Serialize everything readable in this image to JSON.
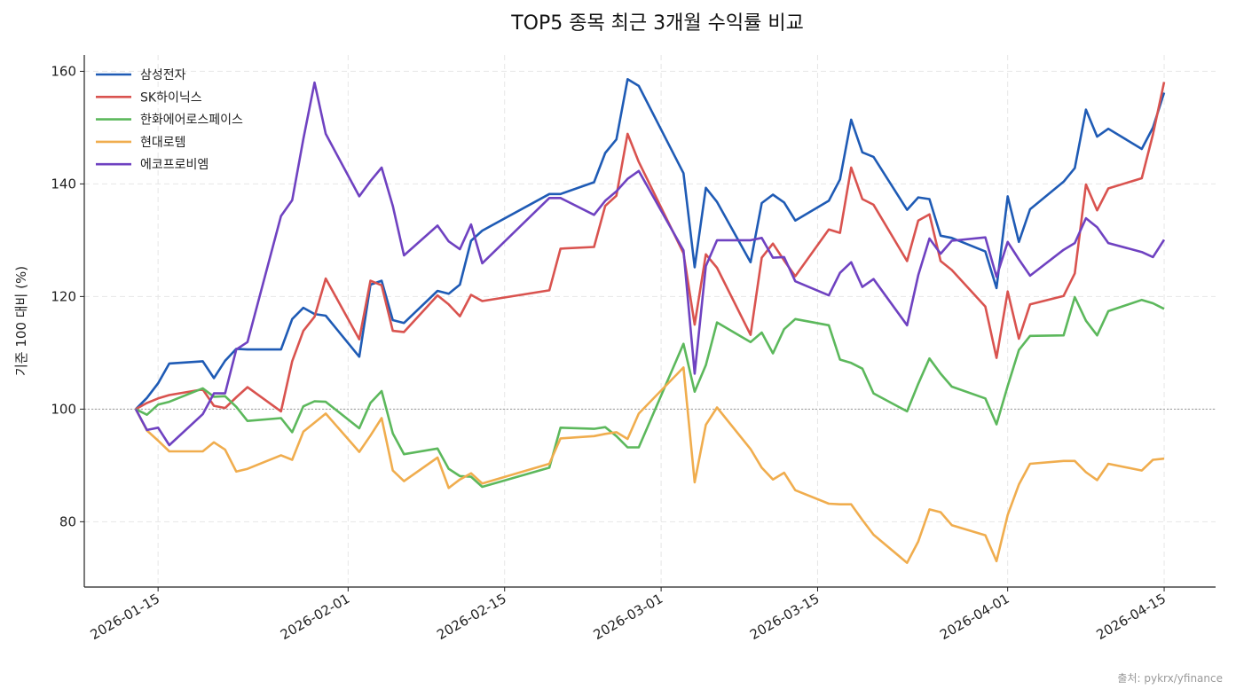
{
  "chart_data": {
    "type": "line",
    "title": "TOP5 종목 최근 3개월 수익률 비교",
    "xlabel": "",
    "ylabel": "기준 100 대비 (%)",
    "source": "출처: pykrx/yfinance",
    "ylim": [
      68.4,
      162.9
    ],
    "yticks": [
      80,
      100,
      120,
      140,
      160
    ],
    "xticks": [
      "2026-01-15",
      "2026-02-01",
      "2026-02-15",
      "2026-03-01",
      "2026-03-15",
      "2026-04-01",
      "2026-04-15"
    ],
    "grid": true,
    "reference_line": 100,
    "legend_position": "top-left",
    "x": [
      "2026-01-13",
      "2026-01-14",
      "2026-01-15",
      "2026-01-16",
      "2026-01-19",
      "2026-01-20",
      "2026-01-21",
      "2026-01-22",
      "2026-01-23",
      "2026-01-26",
      "2026-01-27",
      "2026-01-28",
      "2026-01-29",
      "2026-01-30",
      "2026-02-02",
      "2026-02-03",
      "2026-02-04",
      "2026-02-05",
      "2026-02-06",
      "2026-02-09",
      "2026-02-10",
      "2026-02-11",
      "2026-02-12",
      "2026-02-13",
      "2026-02-19",
      "2026-02-20",
      "2026-02-23",
      "2026-02-24",
      "2026-02-25",
      "2026-02-26",
      "2026-02-27",
      "2026-03-03",
      "2026-03-04",
      "2026-03-05",
      "2026-03-06",
      "2026-03-09",
      "2026-03-10",
      "2026-03-11",
      "2026-03-12",
      "2026-03-13",
      "2026-03-16",
      "2026-03-17",
      "2026-03-18",
      "2026-03-19",
      "2026-03-20",
      "2026-03-23",
      "2026-03-24",
      "2026-03-25",
      "2026-03-26",
      "2026-03-27",
      "2026-03-30",
      "2026-03-31",
      "2026-04-01",
      "2026-04-02",
      "2026-04-03",
      "2026-04-06",
      "2026-04-07",
      "2026-04-08",
      "2026-04-09",
      "2026-04-10",
      "2026-04-13",
      "2026-04-14",
      "2026-04-15"
    ],
    "series": [
      {
        "name": "삼성전자",
        "color": "#1f5bb5",
        "values": [
          100,
          102.0,
          104.6,
          108.1,
          108.5,
          105.5,
          108.6,
          110.7,
          110.6,
          110.6,
          116.0,
          118.0,
          116.9,
          116.6,
          109.3,
          122.1,
          122.8,
          115.8,
          115.3,
          121.0,
          120.5,
          122.1,
          129.9,
          131.7,
          138.2,
          138.2,
          140.3,
          145.5,
          147.9,
          158.6,
          157.4,
          141.9,
          125.2,
          139.3,
          136.8,
          126.1,
          136.6,
          138.1,
          136.7,
          133.5,
          137.0,
          140.8,
          151.4,
          145.6,
          144.8,
          135.4,
          137.6,
          137.3,
          130.8,
          130.4,
          128.0,
          121.5,
          137.8,
          129.7,
          135.5,
          140.4,
          142.8,
          153.2,
          148.4,
          149.8,
          146.2,
          150.0,
          156.2
        ]
      },
      {
        "name": "SK하이닉스",
        "color": "#d9534f",
        "values": [
          100,
          101.1,
          101.9,
          102.5,
          103.5,
          100.6,
          100.2,
          102.1,
          103.9,
          99.6,
          108.5,
          113.9,
          116.4,
          123.2,
          112.4,
          122.8,
          122.0,
          113.9,
          113.7,
          120.2,
          118.6,
          116.5,
          120.3,
          119.2,
          121.1,
          128.5,
          128.8,
          136.1,
          137.9,
          148.9,
          143.9,
          127.7,
          115.0,
          127.5,
          125.1,
          113.2,
          126.9,
          129.4,
          126.4,
          123.6,
          131.9,
          131.3,
          142.9,
          137.3,
          136.3,
          126.3,
          133.5,
          134.6,
          126.3,
          124.7,
          118.2,
          109.1,
          120.9,
          112.5,
          118.6,
          120.1,
          124.1,
          139.9,
          135.3,
          139.2,
          141.0,
          148.8,
          158.1
        ]
      },
      {
        "name": "한화에어로스페이스",
        "color": "#5cb85c",
        "values": [
          100,
          99.0,
          100.8,
          101.3,
          103.7,
          102.2,
          102.3,
          100.4,
          97.9,
          98.4,
          95.9,
          100.5,
          101.4,
          101.3,
          96.6,
          101.1,
          103.2,
          95.7,
          92.0,
          93.0,
          89.4,
          88.1,
          88.0,
          86.2,
          89.6,
          96.7,
          96.5,
          96.8,
          95.2,
          93.2,
          93.2,
          111.6,
          103.1,
          107.8,
          115.4,
          111.9,
          113.6,
          109.9,
          114.2,
          116.0,
          114.9,
          108.8,
          108.2,
          107.2,
          102.8,
          99.6,
          104.5,
          109.0,
          106.3,
          104.0,
          101.9,
          97.3,
          104.1,
          110.5,
          113.0,
          113.1,
          119.9,
          115.7,
          113.1,
          117.4,
          119.4,
          118.8,
          117.8
        ]
      },
      {
        "name": "현대로템",
        "color": "#f0ad4e",
        "values": [
          100,
          96.2,
          94.4,
          92.5,
          92.5,
          94.1,
          92.8,
          88.9,
          89.4,
          91.8,
          91.0,
          96.0,
          97.6,
          99.2,
          92.4,
          95.3,
          98.4,
          89.1,
          87.2,
          91.4,
          86.0,
          87.5,
          88.6,
          86.8,
          90.3,
          94.8,
          95.2,
          95.6,
          95.9,
          94.7,
          99.2,
          107.4,
          87.0,
          97.2,
          100.3,
          92.9,
          89.6,
          87.5,
          88.7,
          85.6,
          83.2,
          83.1,
          83.1,
          80.3,
          77.7,
          72.7,
          76.5,
          82.2,
          81.7,
          79.4,
          77.6,
          73.0,
          81.2,
          86.6,
          90.3,
          90.8,
          90.8,
          88.8,
          87.4,
          90.3,
          89.1,
          91.0,
          91.2
        ]
      },
      {
        "name": "에코프로비엠",
        "color": "#6f42c1",
        "values": [
          100,
          96.3,
          96.7,
          93.6,
          99.1,
          102.8,
          102.8,
          110.6,
          111.9,
          134.3,
          137.1,
          148.0,
          158.0,
          148.9,
          137.8,
          140.5,
          142.9,
          136.1,
          127.3,
          132.6,
          129.8,
          128.4,
          132.8,
          125.9,
          137.5,
          137.5,
          134.5,
          137.0,
          138.7,
          140.9,
          142.3,
          128.2,
          106.3,
          125.4,
          130.0,
          130.0,
          130.4,
          126.9,
          127.0,
          122.7,
          120.2,
          124.2,
          126.1,
          121.7,
          123.1,
          114.9,
          123.8,
          130.3,
          127.6,
          129.9,
          130.5,
          123.5,
          129.7,
          126.6,
          123.7,
          128.3,
          129.5,
          133.9,
          132.3,
          129.5,
          127.9,
          127.0,
          130.1
        ]
      }
    ]
  }
}
